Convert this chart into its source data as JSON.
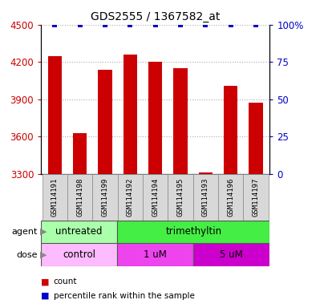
{
  "title": "GDS2555 / 1367582_at",
  "samples": [
    "GSM114191",
    "GSM114198",
    "GSM114199",
    "GSM114192",
    "GSM114194",
    "GSM114195",
    "GSM114193",
    "GSM114196",
    "GSM114197"
  ],
  "counts": [
    4250,
    3630,
    4140,
    4260,
    4200,
    4150,
    3310,
    4010,
    3870
  ],
  "percentiles": [
    100,
    100,
    100,
    100,
    100,
    100,
    100,
    100,
    100
  ],
  "ylim_left": [
    3300,
    4500
  ],
  "ylim_right": [
    0,
    100
  ],
  "yticks_left": [
    3300,
    3600,
    3900,
    4200,
    4500
  ],
  "yticks_right": [
    0,
    25,
    50,
    75,
    100
  ],
  "yticklabels_right": [
    "0",
    "25",
    "50",
    "75",
    "100%"
  ],
  "bar_color": "#cc0000",
  "dot_color": "#0000cc",
  "agent_groups": [
    {
      "label": "untreated",
      "start": 0,
      "end": 3,
      "color": "#aaffaa"
    },
    {
      "label": "trimethyltin",
      "start": 3,
      "end": 9,
      "color": "#44ee44"
    }
  ],
  "dose_groups": [
    {
      "label": "control",
      "start": 0,
      "end": 3,
      "color": "#ffbbff"
    },
    {
      "label": "1 uM",
      "start": 3,
      "end": 6,
      "color": "#ee44ee"
    },
    {
      "label": "5 uM",
      "start": 6,
      "end": 9,
      "color": "#cc00cc"
    }
  ],
  "legend_items": [
    {
      "label": "count",
      "color": "#cc0000"
    },
    {
      "label": "percentile rank within the sample",
      "color": "#0000cc"
    }
  ],
  "grid_color": "#aaaaaa",
  "label_color_left": "#cc0000",
  "label_color_right": "#0000cc",
  "sample_box_color": "#d8d8d8",
  "sample_box_edge": "#888888"
}
